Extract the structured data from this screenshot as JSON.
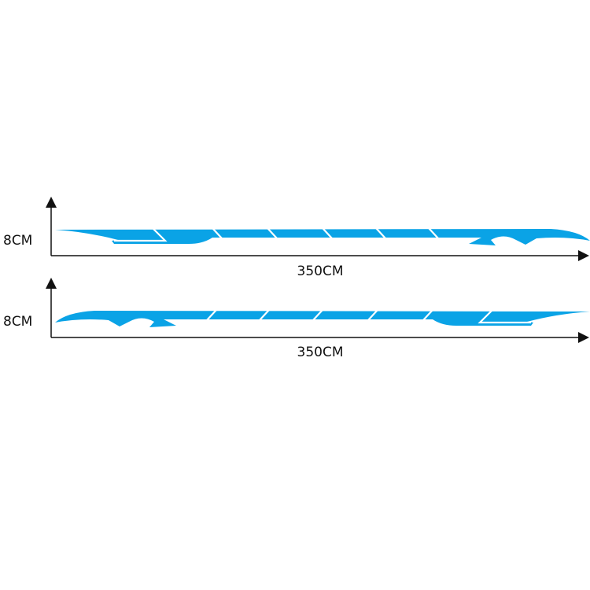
{
  "colors": {
    "stripe": "#0aa3e6",
    "axis": "#111111",
    "background": "#ffffff"
  },
  "diagrams": [
    {
      "height_label": "8CM",
      "length_label": "350CM",
      "orientation": "tail-right"
    },
    {
      "height_label": "8CM",
      "length_label": "350CM",
      "orientation": "tail-left"
    }
  ]
}
